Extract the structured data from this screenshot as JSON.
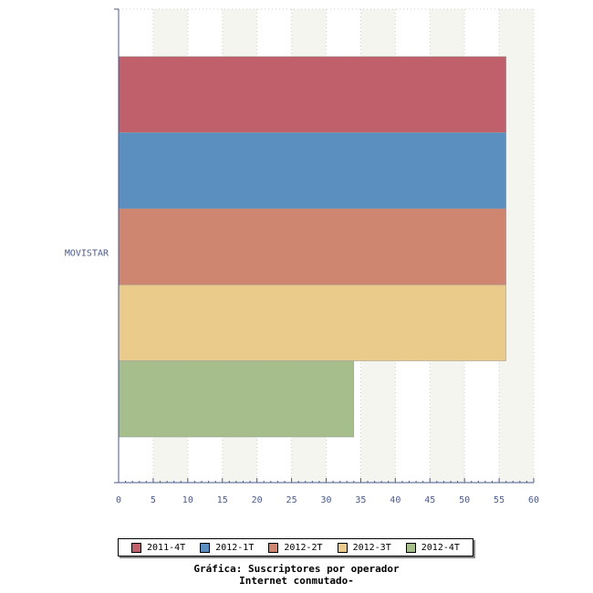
{
  "chart_data": {
    "type": "bar",
    "orientation": "horizontal",
    "categories": [
      "MOVISTAR"
    ],
    "series": [
      {
        "name": "2011-4T",
        "values": [
          56
        ],
        "color": "#c0606a"
      },
      {
        "name": "2012-1T",
        "values": [
          56
        ],
        "color": "#5b8fc0"
      },
      {
        "name": "2012-2T",
        "values": [
          56
        ],
        "color": "#cf8670"
      },
      {
        "name": "2012-3T",
        "values": [
          56
        ],
        "color": "#eacb8c"
      },
      {
        "name": "2012-4T",
        "values": [
          34
        ],
        "color": "#a6bd8c"
      }
    ],
    "xlim": [
      0,
      60
    ],
    "x_ticks": [
      "0",
      "5",
      "10",
      "15",
      "20",
      "25",
      "30",
      "35",
      "40",
      "45",
      "50",
      "55",
      "60"
    ],
    "grid": true,
    "legend_position": "bottom",
    "caption_line1": "Gráfica: Suscriptores por operador",
    "caption_line2": "Internet conmutado-"
  }
}
